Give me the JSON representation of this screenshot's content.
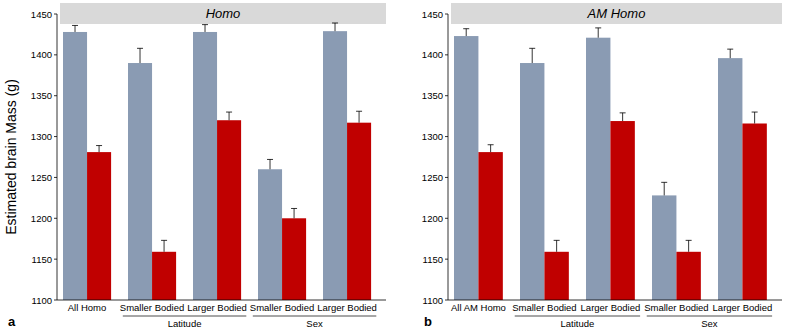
{
  "chart_data": [
    {
      "type": "bar",
      "title": "Homo",
      "panel_label": "a",
      "y_label": "Estimated brain Mass (g)",
      "categories": [
        "All Homo",
        "Smaller Bodied",
        "Larger Bodied",
        "Smaller Bodied",
        "Larger Bodied"
      ],
      "groups": [
        {
          "label": "Latitude",
          "start": 1,
          "end": 2
        },
        {
          "label": "Sex",
          "start": 3,
          "end": 4
        }
      ],
      "series": [
        {
          "color": "#8a9bb3",
          "values": [
            1428,
            1390,
            1428,
            1260,
            1429
          ],
          "errors": [
            8,
            18,
            9,
            12,
            10
          ]
        },
        {
          "color": "#c00000",
          "values": [
            1281,
            1159,
            1320,
            1200,
            1317
          ],
          "errors": [
            8,
            14,
            10,
            12,
            14
          ]
        }
      ],
      "ylim": [
        1100,
        1450
      ],
      "yticks": [
        1100,
        1150,
        1200,
        1250,
        1300,
        1350,
        1400,
        1450
      ],
      "grid": false
    },
    {
      "type": "bar",
      "title": "AM Homo",
      "panel_label": "b",
      "categories": [
        "All AM Homo",
        "Smaller Bodied",
        "Larger Bodied",
        "Smaller Bodied",
        "Larger Bodied"
      ],
      "groups": [
        {
          "label": "Latitude",
          "start": 1,
          "end": 2
        },
        {
          "label": "Sex",
          "start": 3,
          "end": 4
        }
      ],
      "series": [
        {
          "color": "#8a9bb3",
          "values": [
            1423,
            1390,
            1421,
            1228,
            1396
          ],
          "errors": [
            9,
            18,
            12,
            16,
            11
          ]
        },
        {
          "color": "#c00000",
          "values": [
            1281,
            1159,
            1319,
            1159,
            1316
          ],
          "errors": [
            9,
            14,
            10,
            14,
            14
          ]
        }
      ],
      "ylim": [
        1100,
        1450
      ],
      "yticks": [
        1100,
        1150,
        1200,
        1250,
        1300,
        1350,
        1400,
        1450
      ],
      "grid": false
    }
  ]
}
